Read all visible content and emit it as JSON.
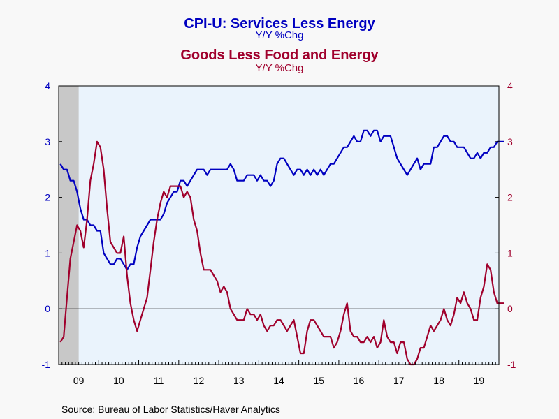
{
  "chart_data": {
    "type": "line",
    "title": "CPI-U: Services Less Energy",
    "title_subtitle": "Y/Y %Chg",
    "title2": "Goods Less Food and Energy",
    "title2_subtitle": "Y/Y %Chg",
    "source": "Source:  Bureau of Labor Statistics/Haver Analytics",
    "ylim": [
      -1,
      4
    ],
    "yticks_left": [
      "4",
      "3",
      "2",
      "1",
      "0",
      "-1"
    ],
    "yticks_right": [
      "4",
      "3",
      "2",
      "1",
      "0",
      "-1"
    ],
    "x_tick_labels": [
      "09",
      "10",
      "11",
      "12",
      "13",
      "14",
      "15",
      "16",
      "17",
      "18",
      "19"
    ],
    "x_start": "2009-01",
    "x_end": "2019-12",
    "recession_shade": {
      "start": "2009-01",
      "end": "2009-06",
      "color": "#c8c8c8"
    },
    "zero_line": true,
    "grid": false,
    "colors": {
      "plot_background": "#eaf3fc",
      "page_background": "#f8f8f8",
      "services": "#0000c0",
      "goods": "#a0002c",
      "axis": "#000000"
    },
    "series": [
      {
        "name": "CPI-U: Services Less Energy",
        "axis": "left",
        "color": "#0000c0",
        "values": [
          2.6,
          2.5,
          2.5,
          2.3,
          2.3,
          2.1,
          1.8,
          1.6,
          1.6,
          1.5,
          1.5,
          1.4,
          1.4,
          1.0,
          0.9,
          0.8,
          0.8,
          0.9,
          0.9,
          0.8,
          0.7,
          0.8,
          0.8,
          1.1,
          1.3,
          1.4,
          1.5,
          1.6,
          1.6,
          1.6,
          1.6,
          1.7,
          1.9,
          2.0,
          2.1,
          2.1,
          2.3,
          2.3,
          2.2,
          2.3,
          2.4,
          2.5,
          2.5,
          2.5,
          2.4,
          2.5,
          2.5,
          2.5,
          2.5,
          2.5,
          2.5,
          2.6,
          2.5,
          2.3,
          2.3,
          2.3,
          2.4,
          2.4,
          2.4,
          2.3,
          2.4,
          2.3,
          2.3,
          2.2,
          2.3,
          2.6,
          2.7,
          2.7,
          2.6,
          2.5,
          2.4,
          2.5,
          2.5,
          2.4,
          2.5,
          2.4,
          2.5,
          2.4,
          2.5,
          2.4,
          2.5,
          2.6,
          2.6,
          2.7,
          2.8,
          2.9,
          2.9,
          3.0,
          3.1,
          3.0,
          3.0,
          3.2,
          3.2,
          3.1,
          3.2,
          3.2,
          3.0,
          3.1,
          3.1,
          3.1,
          2.9,
          2.7,
          2.6,
          2.5,
          2.4,
          2.5,
          2.6,
          2.7,
          2.5,
          2.6,
          2.6,
          2.6,
          2.9,
          2.9,
          3.0,
          3.1,
          3.1,
          3.0,
          3.0,
          2.9,
          2.9,
          2.9,
          2.8,
          2.7,
          2.7,
          2.8,
          2.7,
          2.8,
          2.8,
          2.9,
          2.9,
          3.0,
          3.0,
          3.0
        ]
      },
      {
        "name": "Goods Less Food and Energy",
        "axis": "right",
        "color": "#a0002c",
        "values": [
          -0.6,
          -0.5,
          0.2,
          0.9,
          1.2,
          1.5,
          1.4,
          1.1,
          1.6,
          2.3,
          2.6,
          3.0,
          2.9,
          2.5,
          1.8,
          1.2,
          1.1,
          1.0,
          1.0,
          1.3,
          0.6,
          0.1,
          -0.2,
          -0.4,
          -0.2,
          0.0,
          0.2,
          0.7,
          1.2,
          1.6,
          1.9,
          2.1,
          2.0,
          2.2,
          2.2,
          2.2,
          2.2,
          2.0,
          2.1,
          2.0,
          1.6,
          1.4,
          1.0,
          0.7,
          0.7,
          0.7,
          0.6,
          0.5,
          0.3,
          0.4,
          0.3,
          0.0,
          -0.1,
          -0.2,
          -0.2,
          -0.2,
          0.0,
          -0.1,
          -0.1,
          -0.2,
          -0.1,
          -0.3,
          -0.4,
          -0.3,
          -0.3,
          -0.2,
          -0.2,
          -0.3,
          -0.4,
          -0.3,
          -0.2,
          -0.5,
          -0.8,
          -0.8,
          -0.4,
          -0.2,
          -0.2,
          -0.3,
          -0.4,
          -0.5,
          -0.5,
          -0.5,
          -0.7,
          -0.6,
          -0.4,
          -0.1,
          0.1,
          -0.4,
          -0.5,
          -0.5,
          -0.6,
          -0.6,
          -0.5,
          -0.6,
          -0.5,
          -0.7,
          -0.6,
          -0.2,
          -0.5,
          -0.6,
          -0.6,
          -0.8,
          -0.6,
          -0.6,
          -0.9,
          -1.0,
          -1.0,
          -0.9,
          -0.7,
          -0.7,
          -0.5,
          -0.3,
          -0.4,
          -0.3,
          -0.2,
          0.0,
          -0.2,
          -0.3,
          -0.1,
          0.2,
          0.1,
          0.3,
          0.1,
          0.0,
          -0.2,
          -0.2,
          0.2,
          0.4,
          0.8,
          0.7,
          0.3,
          0.1,
          0.1,
          0.1
        ]
      }
    ]
  }
}
